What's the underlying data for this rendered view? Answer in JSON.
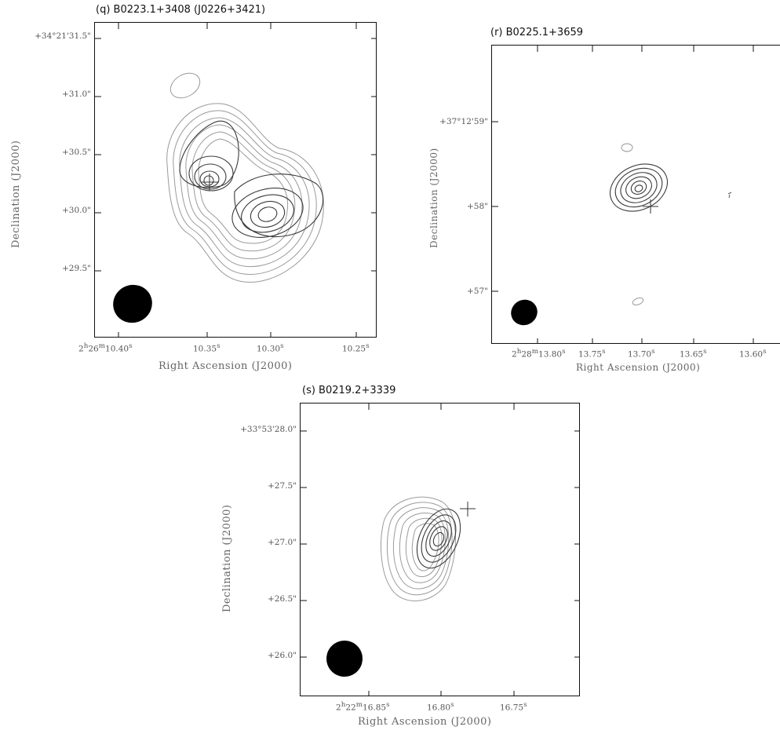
{
  "figure": {
    "panels": [
      {
        "id": "q",
        "title": "(q) B0223.1+3408 (J0226+3421)",
        "xlabel": "Right Ascension (J2000)",
        "ylabel": "Declination (J2000)",
        "x_ticks": [
          "2h26m10.40s",
          "10.35s",
          "10.30s",
          "10.25s"
        ],
        "x_tick_display": [
          {
            "main": "2",
            "sup1": "h",
            "mid": "26",
            "sup2": "m",
            "tail": "10.40",
            "sup3": "s"
          },
          {
            "tail": "10.35",
            "sup3": "s"
          },
          {
            "tail": "10.30",
            "sup3": "s"
          },
          {
            "tail": "10.25",
            "sup3": "s"
          }
        ],
        "y_ticks": [
          "+34°21'31.5\"",
          "+31.0\"",
          "+30.5\"",
          "+30.0\"",
          "+29.5\""
        ]
      },
      {
        "id": "r",
        "title": "(r) B0225.1+3659",
        "xlabel": "Right Ascension (J2000)",
        "ylabel": "Declination (J2000)",
        "x_ticks": [
          "2h28m13.80s",
          "13.75s",
          "13.70s",
          "13.65s",
          "13.60s"
        ],
        "x_tick_display": [
          {
            "main": "2",
            "sup1": "h",
            "mid": "28",
            "sup2": "m",
            "tail": "13.80",
            "sup3": "s"
          },
          {
            "tail": "13.75",
            "sup3": "s"
          },
          {
            "tail": "13.70",
            "sup3": "s"
          },
          {
            "tail": "13.65",
            "sup3": "s"
          },
          {
            "tail": "13.60",
            "sup3": "s"
          }
        ],
        "y_ticks": [
          "+37°12'59\"",
          "+58\"",
          "+57\""
        ]
      },
      {
        "id": "s",
        "title": "(s) B0219.2+3339",
        "xlabel": "Right Ascension (J2000)",
        "ylabel": "Declination (J2000)",
        "x_ticks": [
          "2h22m16.85s",
          "16.80s",
          "16.75s"
        ],
        "x_tick_display": [
          {
            "main": "2",
            "sup1": "h",
            "mid": "22",
            "sup2": "m",
            "tail": "16.85",
            "sup3": "s"
          },
          {
            "tail": "16.80",
            "sup3": "s"
          },
          {
            "tail": "16.75",
            "sup3": "s"
          }
        ],
        "y_ticks": [
          "+33°53'28.0\"",
          "+27.5\"",
          "+27.0\"",
          "+26.5\"",
          "+26.0\""
        ]
      }
    ],
    "colors": {
      "frame": "#111111",
      "contour_light": "#9a9a9a",
      "contour_dark": "#3a3a3a",
      "beam": "#000000"
    }
  }
}
